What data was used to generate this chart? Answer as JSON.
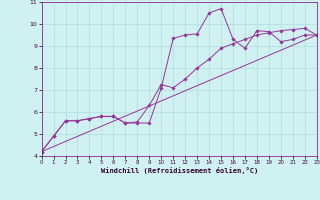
{
  "xlabel": "Windchill (Refroidissement éolien,°C)",
  "bg_color": "#cff1f1",
  "line_color": "#993399",
  "grid_color": "#b0dede",
  "xlim": [
    0,
    23
  ],
  "ylim": [
    4,
    11
  ],
  "xticks": [
    0,
    1,
    2,
    3,
    4,
    5,
    6,
    7,
    8,
    9,
    10,
    11,
    12,
    13,
    14,
    15,
    16,
    17,
    18,
    19,
    20,
    21,
    22,
    23
  ],
  "yticks": [
    4,
    5,
    6,
    7,
    8,
    9,
    10,
    11
  ],
  "series1_x": [
    0,
    1,
    2,
    3,
    4,
    5,
    6,
    7,
    8,
    9,
    10,
    11,
    12,
    13,
    14,
    15,
    16,
    17,
    18,
    19,
    20,
    21,
    22,
    23
  ],
  "series1_y": [
    4.2,
    4.9,
    5.6,
    5.6,
    5.7,
    5.8,
    5.8,
    5.5,
    5.5,
    5.5,
    7.1,
    9.35,
    9.5,
    9.55,
    10.5,
    10.7,
    9.3,
    8.9,
    9.7,
    9.65,
    9.2,
    9.3,
    9.5,
    9.5
  ],
  "series2_x": [
    0,
    1,
    2,
    3,
    4,
    5,
    6,
    7,
    8,
    9,
    10,
    11,
    12,
    13,
    14,
    15,
    16,
    17,
    18,
    19,
    20,
    21,
    22,
    23
  ],
  "series2_y": [
    4.2,
    4.9,
    5.6,
    5.6,
    5.7,
    5.8,
    5.8,
    5.5,
    5.55,
    6.3,
    7.25,
    7.1,
    7.5,
    8.0,
    8.4,
    8.9,
    9.1,
    9.3,
    9.5,
    9.6,
    9.7,
    9.75,
    9.8,
    9.5
  ],
  "series3_x": [
    0,
    23
  ],
  "series3_y": [
    4.2,
    9.5
  ]
}
